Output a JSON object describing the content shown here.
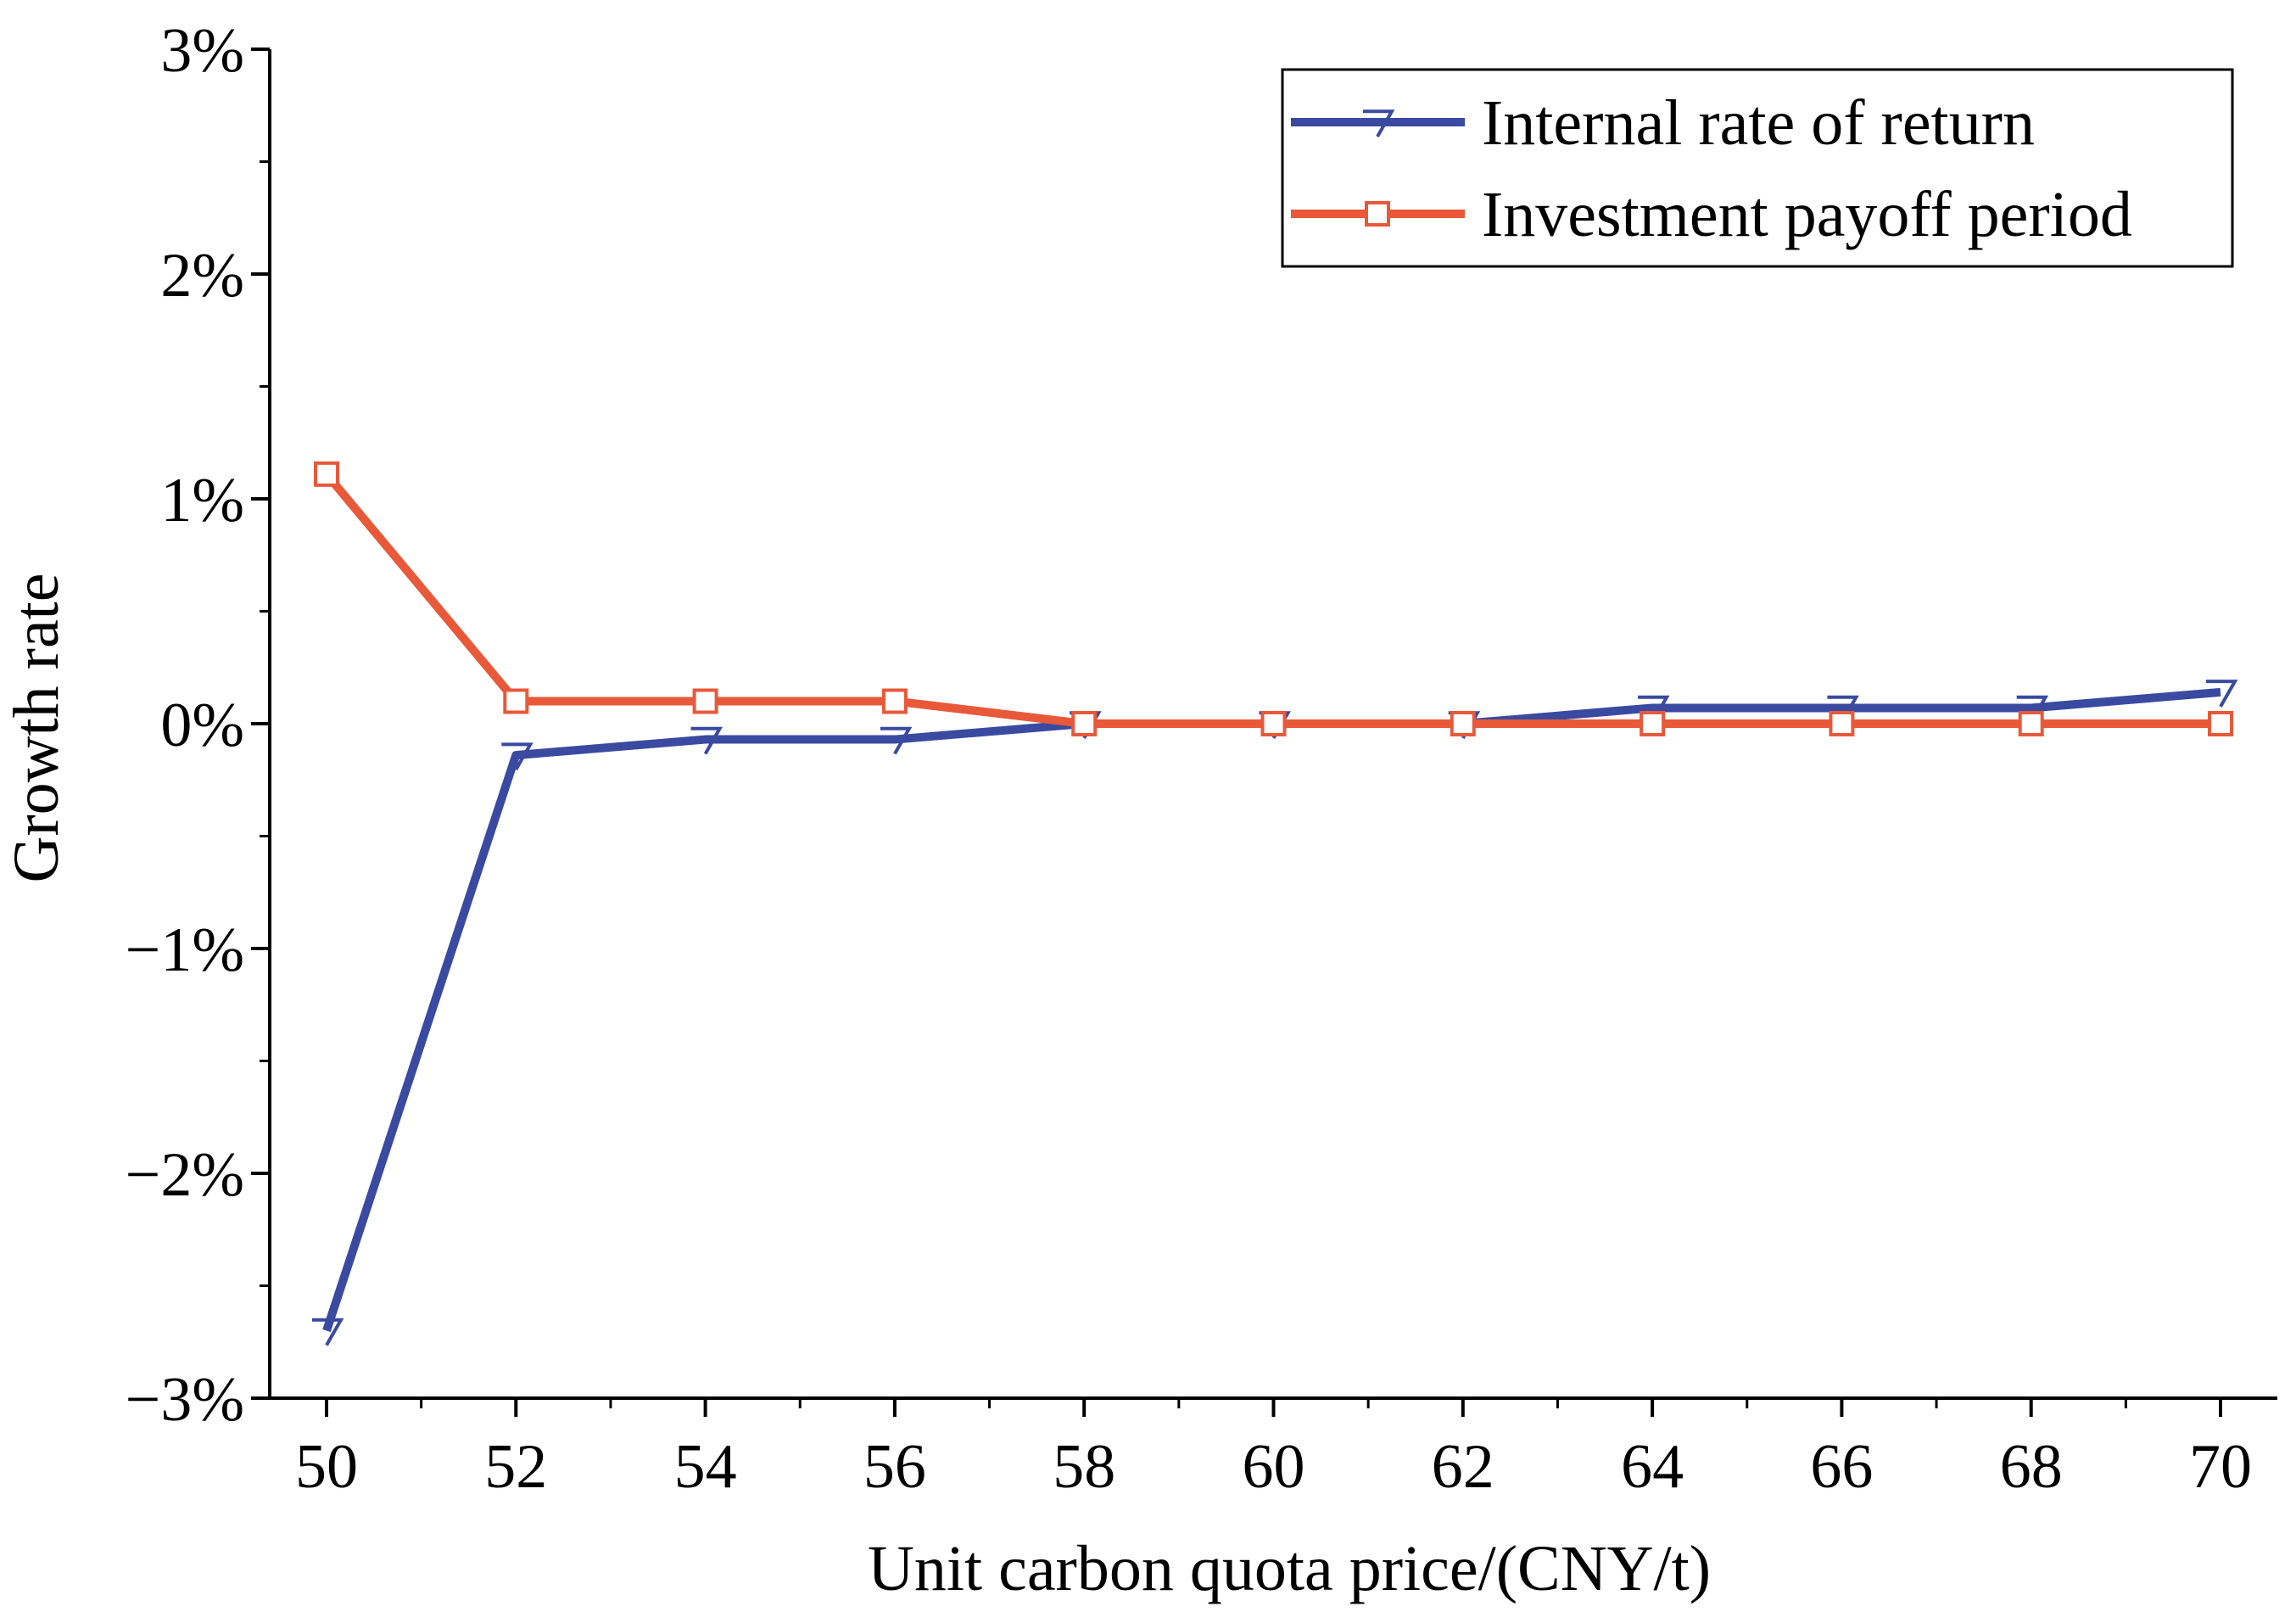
{
  "chart_data": {
    "type": "line",
    "title": "",
    "xlabel": "Unit carbon quota price/(CNY/t)",
    "ylabel": "Growth rate",
    "x": [
      50,
      52,
      54,
      56,
      58,
      60,
      62,
      64,
      66,
      68,
      70
    ],
    "xlim": [
      49.4,
      70.6
    ],
    "ylim": [
      -3,
      3
    ],
    "xticks": [
      50,
      52,
      54,
      56,
      58,
      60,
      62,
      64,
      66,
      68,
      70
    ],
    "xtick_labels": [
      "50",
      "52",
      "54",
      "56",
      "58",
      "60",
      "62",
      "64",
      "66",
      "68",
      "70"
    ],
    "yticks": [
      -3,
      -2,
      -1,
      0,
      1,
      2,
      3
    ],
    "ytick_labels": [
      "−3%",
      "−2%",
      "−1%",
      "0%",
      "1%",
      "2%",
      "3%"
    ],
    "grid": false,
    "legend_position": "top-right",
    "series": [
      {
        "name": "Internal rate of return",
        "color": "#3a4aa0",
        "marker": "down-triangle",
        "values": [
          -2.7,
          -0.14,
          -0.07,
          -0.07,
          0.0,
          0.0,
          0.0,
          0.07,
          0.07,
          0.07,
          0.14
        ]
      },
      {
        "name": "Investment payoff period",
        "color": "#e8593a",
        "marker": "square",
        "values": [
          1.11,
          0.1,
          0.1,
          0.1,
          0.0,
          0.0,
          0.0,
          0.0,
          0.0,
          0.0,
          0.0
        ]
      }
    ]
  }
}
